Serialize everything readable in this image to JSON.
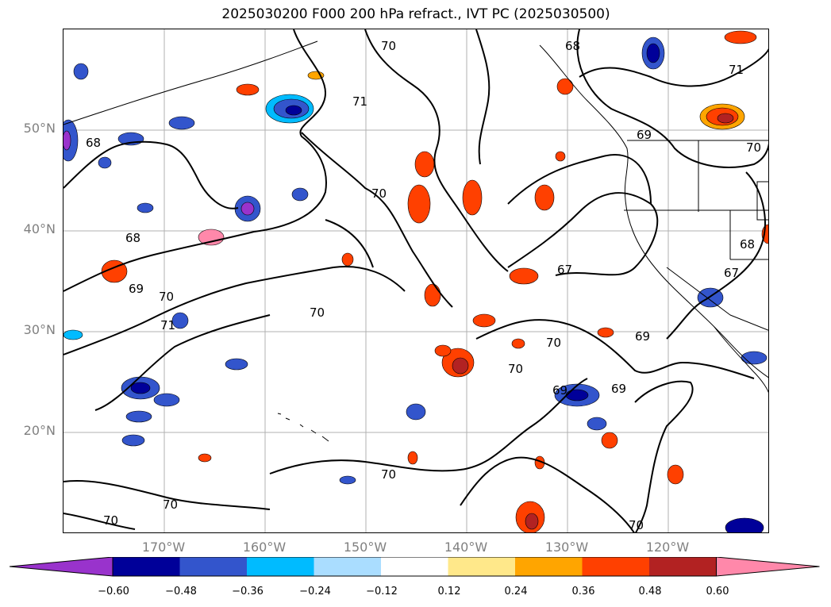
{
  "title": "2025030200 F000 200 hPa refract., IVT PC (2025030500)",
  "latitude_labels": [
    "50°N",
    "40°N",
    "30°N",
    "20°N"
  ],
  "longitude_labels": [
    "170°W",
    "160°W",
    "150°W",
    "140°W",
    "130°W",
    "120°W"
  ],
  "contour_labels": [
    "70",
    "71",
    "68",
    "71",
    "68",
    "69",
    "70",
    "68",
    "67",
    "69",
    "70",
    "71",
    "70",
    "70",
    "70",
    "70",
    "69",
    "69",
    "69",
    "70",
    "70",
    "70",
    "67",
    "68",
    "70"
  ],
  "colorbar": {
    "extend": "both",
    "tick_labels": [
      "−0.60",
      "−0.48",
      "−0.36",
      "−0.24",
      "−0.12",
      "0.12",
      "0.24",
      "0.36",
      "0.48",
      "0.60"
    ],
    "colors": [
      "#9933cc",
      "#000099",
      "#3355cc",
      "#00bbff",
      "#aaddff",
      "#ffffff",
      "#ffe88a",
      "#ffa500",
      "#ff4000",
      "#b22222",
      "#ff88aa"
    ]
  },
  "map": {
    "lat_range": [
      10,
      60
    ],
    "lon_range": [
      -180,
      -110
    ],
    "gridlines": true,
    "contour_color": "#000000",
    "coastline_color": "#000000"
  }
}
